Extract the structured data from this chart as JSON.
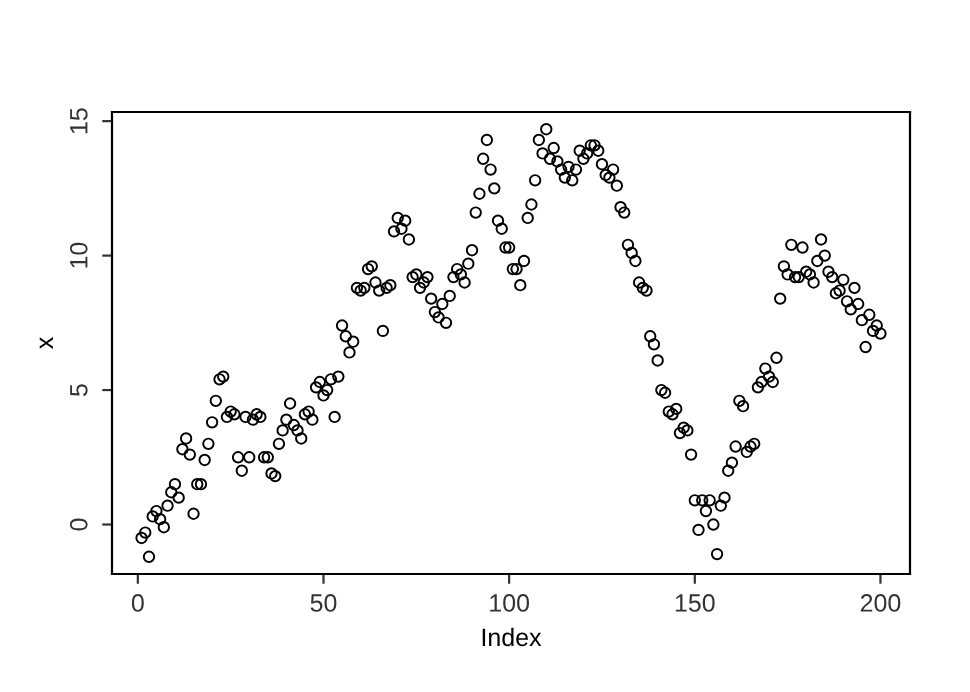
{
  "chart_data": {
    "type": "scatter",
    "xlabel": "Index",
    "ylabel": "x",
    "marker": "circle",
    "grid": false,
    "x": [
      1,
      2,
      3,
      4,
      5,
      6,
      7,
      8,
      9,
      10,
      11,
      12,
      13,
      14,
      15,
      16,
      17,
      18,
      19,
      20,
      21,
      22,
      23,
      24,
      25,
      26,
      27,
      28,
      29,
      30,
      31,
      32,
      33,
      34,
      35,
      36,
      37,
      38,
      39,
      40,
      41,
      42,
      43,
      44,
      45,
      46,
      47,
      48,
      49,
      50,
      51,
      52,
      53,
      54,
      55,
      56,
      57,
      58,
      59,
      60,
      61,
      62,
      63,
      64,
      65,
      66,
      67,
      68,
      69,
      70,
      71,
      72,
      73,
      74,
      75,
      76,
      77,
      78,
      79,
      80,
      81,
      82,
      83,
      84,
      85,
      86,
      87,
      88,
      89,
      90,
      91,
      92,
      93,
      94,
      95,
      96,
      97,
      98,
      99,
      100,
      101,
      102,
      103,
      104,
      105,
      106,
      107,
      108,
      109,
      110,
      111,
      112,
      113,
      114,
      115,
      116,
      117,
      118,
      119,
      120,
      121,
      122,
      123,
      124,
      125,
      126,
      127,
      128,
      129,
      130,
      131,
      132,
      133,
      134,
      135,
      136,
      137,
      138,
      139,
      140,
      141,
      142,
      143,
      144,
      145,
      146,
      147,
      148,
      149,
      150,
      151,
      152,
      153,
      154,
      155,
      156,
      157,
      158,
      159,
      160,
      161,
      162,
      163,
      164,
      165,
      166,
      167,
      168,
      169,
      170,
      171,
      172,
      173,
      174,
      175,
      176,
      177,
      178,
      179,
      180,
      181,
      182,
      183,
      184,
      185,
      186,
      187,
      188,
      189,
      190,
      191,
      192,
      193,
      194,
      195,
      196,
      197,
      198,
      199,
      200
    ],
    "values": [
      -0.5,
      -0.3,
      -1.2,
      0.3,
      0.5,
      0.2,
      -0.1,
      0.7,
      1.2,
      1.5,
      1.0,
      2.8,
      3.2,
      2.6,
      0.4,
      1.5,
      1.5,
      2.4,
      3.0,
      3.8,
      4.6,
      5.4,
      5.5,
      4.0,
      4.2,
      4.1,
      2.5,
      2.0,
      4.0,
      2.5,
      3.9,
      4.1,
      4.0,
      2.5,
      2.5,
      1.9,
      1.8,
      3.0,
      3.5,
      3.9,
      4.5,
      3.7,
      3.5,
      3.2,
      4.1,
      4.2,
      3.9,
      5.1,
      5.3,
      4.8,
      5.0,
      5.4,
      4.0,
      5.5,
      7.4,
      7.0,
      6.4,
      6.8,
      8.8,
      8.7,
      8.8,
      9.5,
      9.6,
      9.0,
      8.7,
      7.2,
      8.8,
      8.9,
      10.9,
      11.4,
      11.0,
      11.3,
      10.6,
      9.2,
      9.3,
      8.8,
      9.0,
      9.2,
      8.4,
      7.9,
      7.7,
      8.2,
      7.5,
      8.5,
      9.2,
      9.5,
      9.3,
      9.0,
      9.7,
      10.2,
      11.6,
      12.3,
      13.6,
      14.3,
      13.2,
      12.5,
      11.3,
      11.0,
      10.3,
      10.3,
      9.5,
      9.5,
      8.9,
      9.8,
      11.4,
      11.9,
      12.8,
      14.3,
      13.8,
      14.7,
      13.6,
      14.0,
      13.5,
      13.2,
      12.9,
      13.3,
      12.8,
      13.2,
      13.9,
      13.6,
      13.8,
      14.1,
      14.1,
      13.9,
      13.4,
      13.0,
      12.9,
      13.2,
      12.6,
      11.8,
      11.6,
      10.4,
      10.1,
      9.8,
      9.0,
      8.8,
      8.7,
      7.0,
      6.7,
      6.1,
      5.0,
      4.9,
      4.2,
      4.1,
      4.3,
      3.4,
      3.6,
      3.5,
      2.6,
      0.9,
      -0.2,
      0.9,
      0.5,
      0.9,
      0.0,
      -1.1,
      0.7,
      1.0,
      2.0,
      2.3,
      2.9,
      4.6,
      4.4,
      2.7,
      2.9,
      3.0,
      5.1,
      5.3,
      5.8,
      5.5,
      5.3,
      6.2,
      8.4,
      9.6,
      9.3,
      10.4,
      9.2,
      9.2,
      10.3,
      9.4,
      9.3,
      9.0,
      9.8,
      10.6,
      10.0,
      9.4,
      9.2,
      8.6,
      8.7,
      9.1,
      8.3,
      8.0,
      8.8,
      8.2,
      7.6,
      6.6,
      7.8,
      7.2,
      7.4,
      7.1
    ],
    "color": "#000000",
    "xlim": [
      -6.96,
      207.96
    ],
    "ylim": [
      -1.84,
      15.34
    ],
    "xticks": [
      0,
      50,
      100,
      150,
      200
    ],
    "yticks": [
      0,
      5,
      10,
      15
    ]
  }
}
